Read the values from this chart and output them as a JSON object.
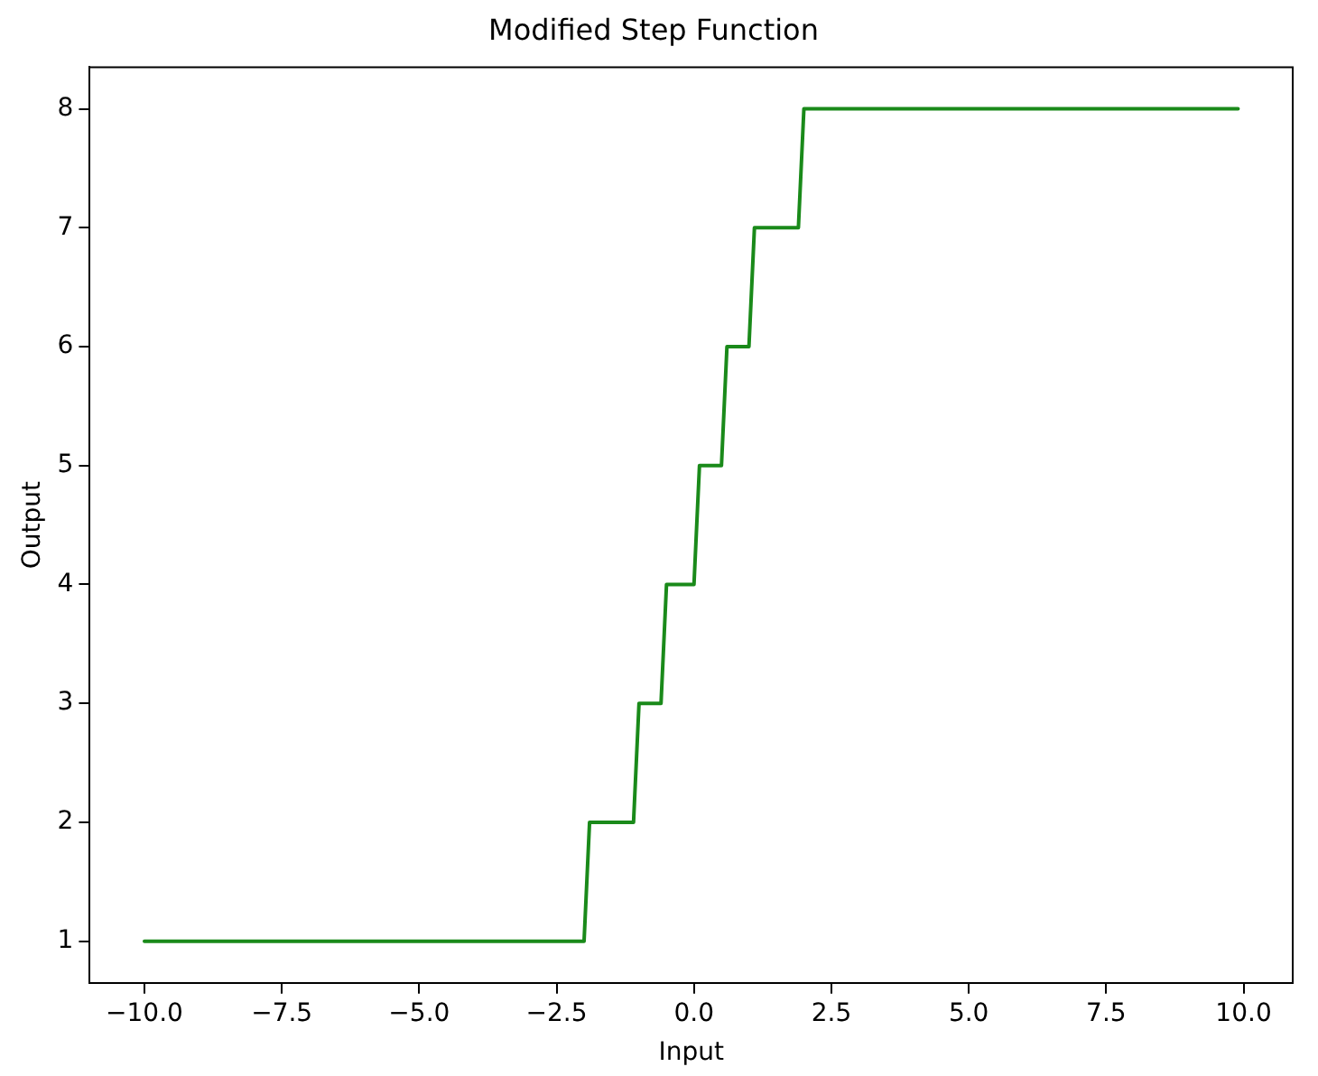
{
  "chart_data": {
    "type": "line",
    "title": "Modified Step Function",
    "xlabel": "Input",
    "ylabel": "Output",
    "series": [
      {
        "color": "#1a8a1a",
        "x": [
          -10,
          -2,
          -1.9,
          -1.1,
          -1,
          -0.6,
          -0.5,
          0,
          0.1,
          0.5,
          0.6,
          1,
          1.1,
          1.9,
          2,
          9.9
        ],
        "values": [
          1,
          1,
          2,
          2,
          3,
          3,
          4,
          4,
          5,
          5,
          6,
          6,
          7,
          7,
          8,
          8
        ]
      }
    ],
    "xlim": [
      -10.995,
      10.895
    ],
    "xticks": [
      {
        "value": -10,
        "label": "−10.0"
      },
      {
        "value": -7.5,
        "label": "−7.5"
      },
      {
        "value": -5,
        "label": "−5.0"
      },
      {
        "value": -2.5,
        "label": "−2.5"
      },
      {
        "value": 0,
        "label": "0.0"
      },
      {
        "value": 2.5,
        "label": "2.5"
      },
      {
        "value": 5,
        "label": "5.0"
      },
      {
        "value": 7.5,
        "label": "7.5"
      },
      {
        "value": 10,
        "label": "10.0"
      }
    ],
    "ylim": [
      0.65,
      8.35
    ],
    "yticks": [
      1,
      2,
      3,
      4,
      5,
      6,
      7,
      8
    ],
    "grid": false,
    "legend": false,
    "marker": "none",
    "line_style": "solid"
  }
}
